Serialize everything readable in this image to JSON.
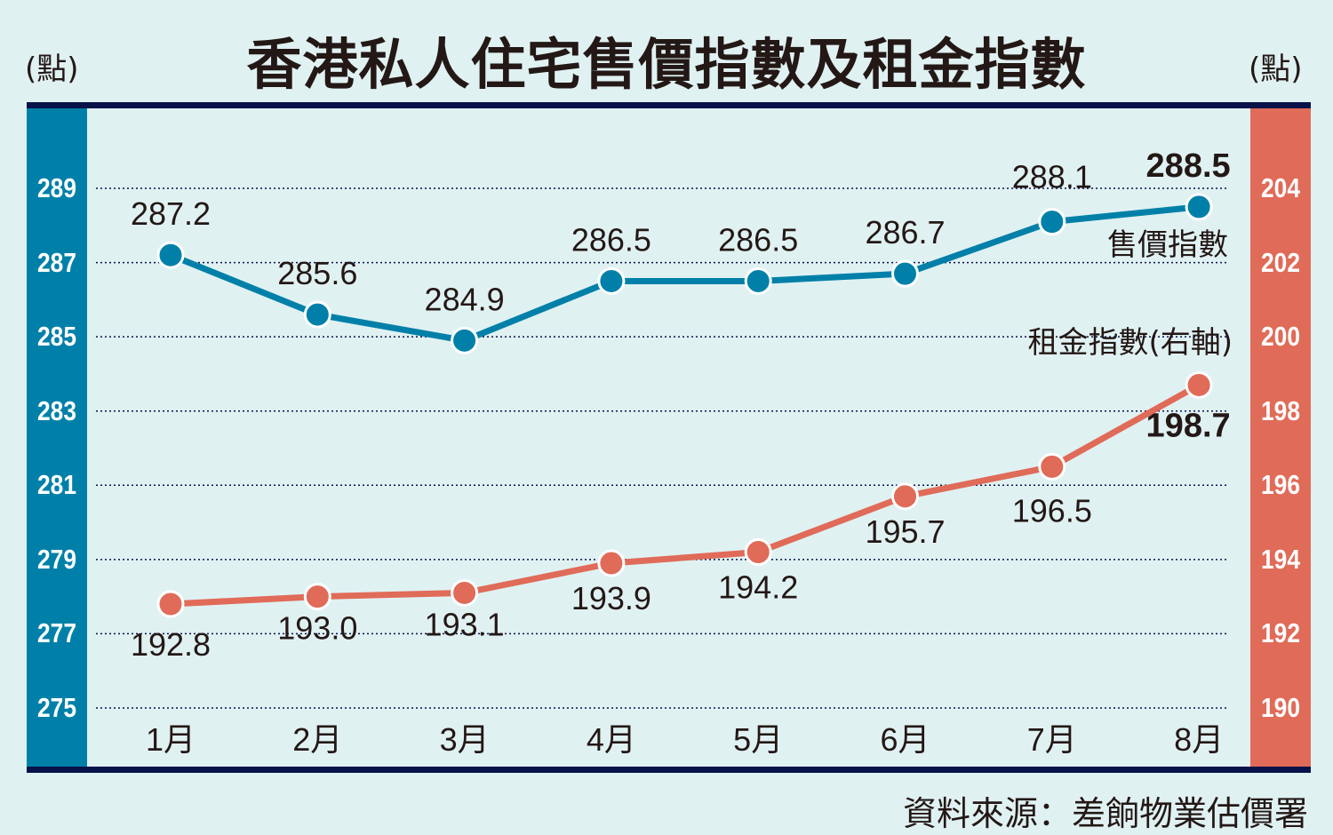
{
  "header": {
    "title": "香港私人住宅售價指數及租金指數",
    "unit_left": "(點)",
    "unit_right": "(點)"
  },
  "footer": {
    "source": "資料來源：差餉物業估價署"
  },
  "colors": {
    "sale": "#0080a8",
    "rent": "#e06b58",
    "frame": "#07124a",
    "background": "#e0f1f2"
  },
  "chart_data": {
    "type": "line",
    "title": "香港私人住宅售價指數及租金指數",
    "categories": [
      "1月",
      "2月",
      "3月",
      "4月",
      "5月",
      "6月",
      "7月",
      "8月"
    ],
    "series": [
      {
        "name": "售價指數",
        "axis": "left",
        "values": [
          287.2,
          285.6,
          284.9,
          286.5,
          286.5,
          286.7,
          288.1,
          288.5
        ]
      },
      {
        "name": "租金指數(右軸)",
        "axis": "right",
        "values": [
          192.8,
          193.0,
          193.1,
          193.9,
          194.2,
          195.7,
          196.5,
          198.7
        ]
      }
    ],
    "y_left": {
      "label": "點",
      "ticks": [
        275,
        277,
        279,
        281,
        283,
        285,
        287,
        289
      ],
      "range": [
        275,
        289
      ]
    },
    "y_right": {
      "label": "點",
      "ticks": [
        190,
        192,
        194,
        196,
        198,
        200,
        202,
        204
      ],
      "range": [
        190,
        204
      ]
    },
    "grid": "dotted horizontal",
    "legend": [
      "售價指數",
      "租金指數(右軸)"
    ],
    "source": "資料來源：差餉物業估價署"
  }
}
